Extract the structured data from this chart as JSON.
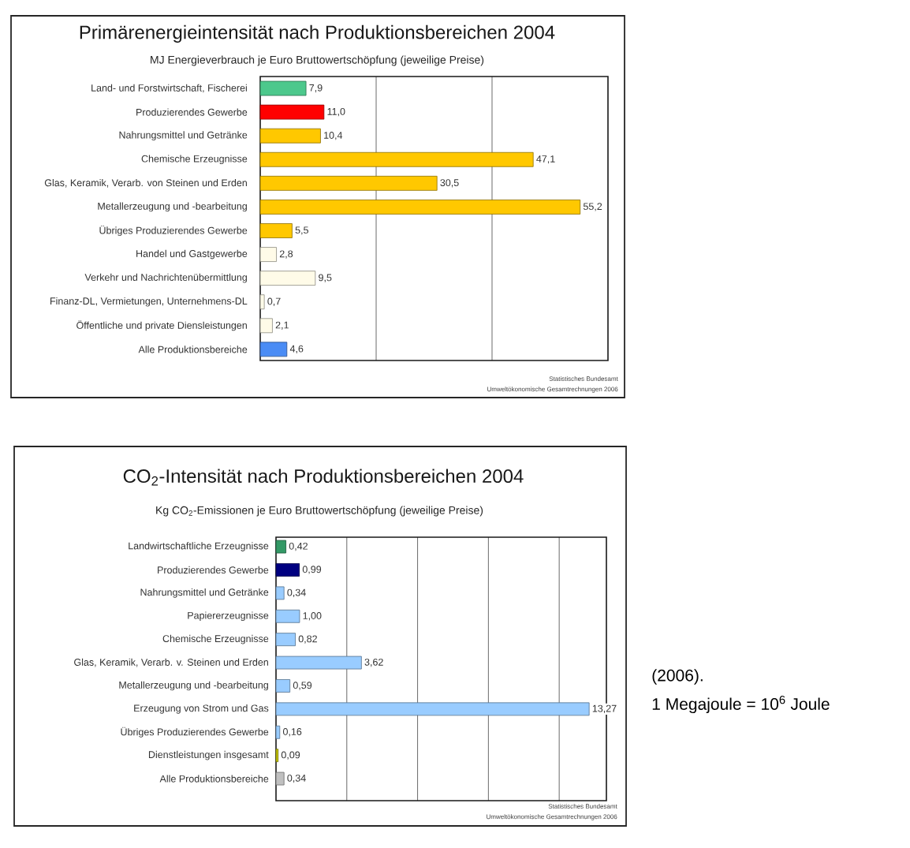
{
  "chart_data": [
    {
      "type": "bar",
      "orientation": "horizontal",
      "title": "Primärenergieintensität nach Produktionsbereichen 2004",
      "subtitle": "MJ Energieverbrauch je Euro Bruttowertschöpfung (jeweilige Preise)",
      "categories": [
        "Land- und Forstwirtschaft, Fischerei",
        "Produzierendes Gewerbe",
        "Nahrungsmittel und Getränke",
        "Chemische Erzeugnisse",
        "Glas, Keramik, Verarb. von Steinen und Erden",
        "Metallerzeugung und -bearbeitung",
        "Übriges Produzierendes Gewerbe",
        "Handel und Gastgewerbe",
        "Verkehr und Nachrichtenübermittlung",
        "Finanz-DL, Vermietungen, Unternehmens-DL",
        "Öffentliche und private Diensleistungen",
        "Alle Produktionsbereiche"
      ],
      "values": [
        7.9,
        11.0,
        10.4,
        47.1,
        30.5,
        55.2,
        5.5,
        2.8,
        9.5,
        0.7,
        2.1,
        4.6
      ],
      "value_labels": [
        "7,9",
        "11,0",
        "10,4",
        "47,1",
        "30,5",
        "55,2",
        "5,5",
        "2,8",
        "9,5",
        "0,7",
        "2,1",
        "4,6"
      ],
      "colors": [
        "#4cc88c",
        "#ff0000",
        "#ffc800",
        "#ffc800",
        "#ffc800",
        "#ffc800",
        "#ffc800",
        "#fffbe8",
        "#fffbe8",
        "#fffbe8",
        "#fffbe8",
        "#4a8cf5"
      ],
      "xlim": [
        0,
        60
      ],
      "xticks": [
        {
          "value": 20,
          "label": null
        },
        {
          "value": 40,
          "label": null
        }
      ],
      "grid": "x",
      "tick_labels": "y",
      "annotations": [
        "Statistisches Bundesamt",
        "Umweltökonomische Gesamtrechnungen 2006"
      ]
    },
    {
      "type": "bar",
      "orientation": "horizontal",
      "title": "CO$_{2}$-Intensität nach Produktionsbereichen 2004",
      "subtitle": "Kg CO$_{2}$-Emissionen je Euro Bruttowertschöpfung (jeweilige Preise)",
      "categories": [
        "Landwirtschaftliche Erzeugnisse",
        "Produzierendes Gewerbe",
        "Nahrungsmittel und Getränke",
        "Papiererzeugnisse",
        "Chemische Erzeugnisse",
        "Glas, Keramik, Verarb. v. Steinen und Erden",
        "Metallerzeugung und -bearbeitung",
        "Erzeugung von Strom und Gas",
        "Übriges Produzierendes Gewerbe",
        "Dienstleistungen insgesamt",
        "Alle Produktionsbereiche"
      ],
      "values": [
        0.42,
        0.99,
        0.34,
        1.0,
        0.82,
        3.62,
        0.59,
        13.27,
        0.16,
        0.09,
        0.34
      ],
      "value_labels": [
        "0,42",
        "0,99",
        "0,34",
        "1,00",
        "0,82",
        "3,62",
        "0,59",
        "13,27",
        "0,16",
        "0,09",
        "0,34"
      ],
      "colors": [
        "#339966",
        "#000080",
        "#99ccff",
        "#99ccff",
        "#99ccff",
        "#99ccff",
        "#99ccff",
        "#99ccff",
        "#99ccff",
        "#c8c800",
        "#c0c0c0"
      ],
      "xlim": [
        0,
        14
      ],
      "xticks": [
        {
          "value": 3,
          "label": null
        },
        {
          "value": 6,
          "label": null
        },
        {
          "value": 9,
          "label": null
        },
        {
          "value": 12,
          "label": null
        }
      ],
      "grid": "x",
      "tick_labels": "y",
      "annotations": [
        "Statistisches Bundesamt",
        "Umweltökonomische Gesamtrechnungen 2006",
        "(2006).",
        "1 Megajoule = 10$^{6}$ Joule"
      ]
    }
  ]
}
